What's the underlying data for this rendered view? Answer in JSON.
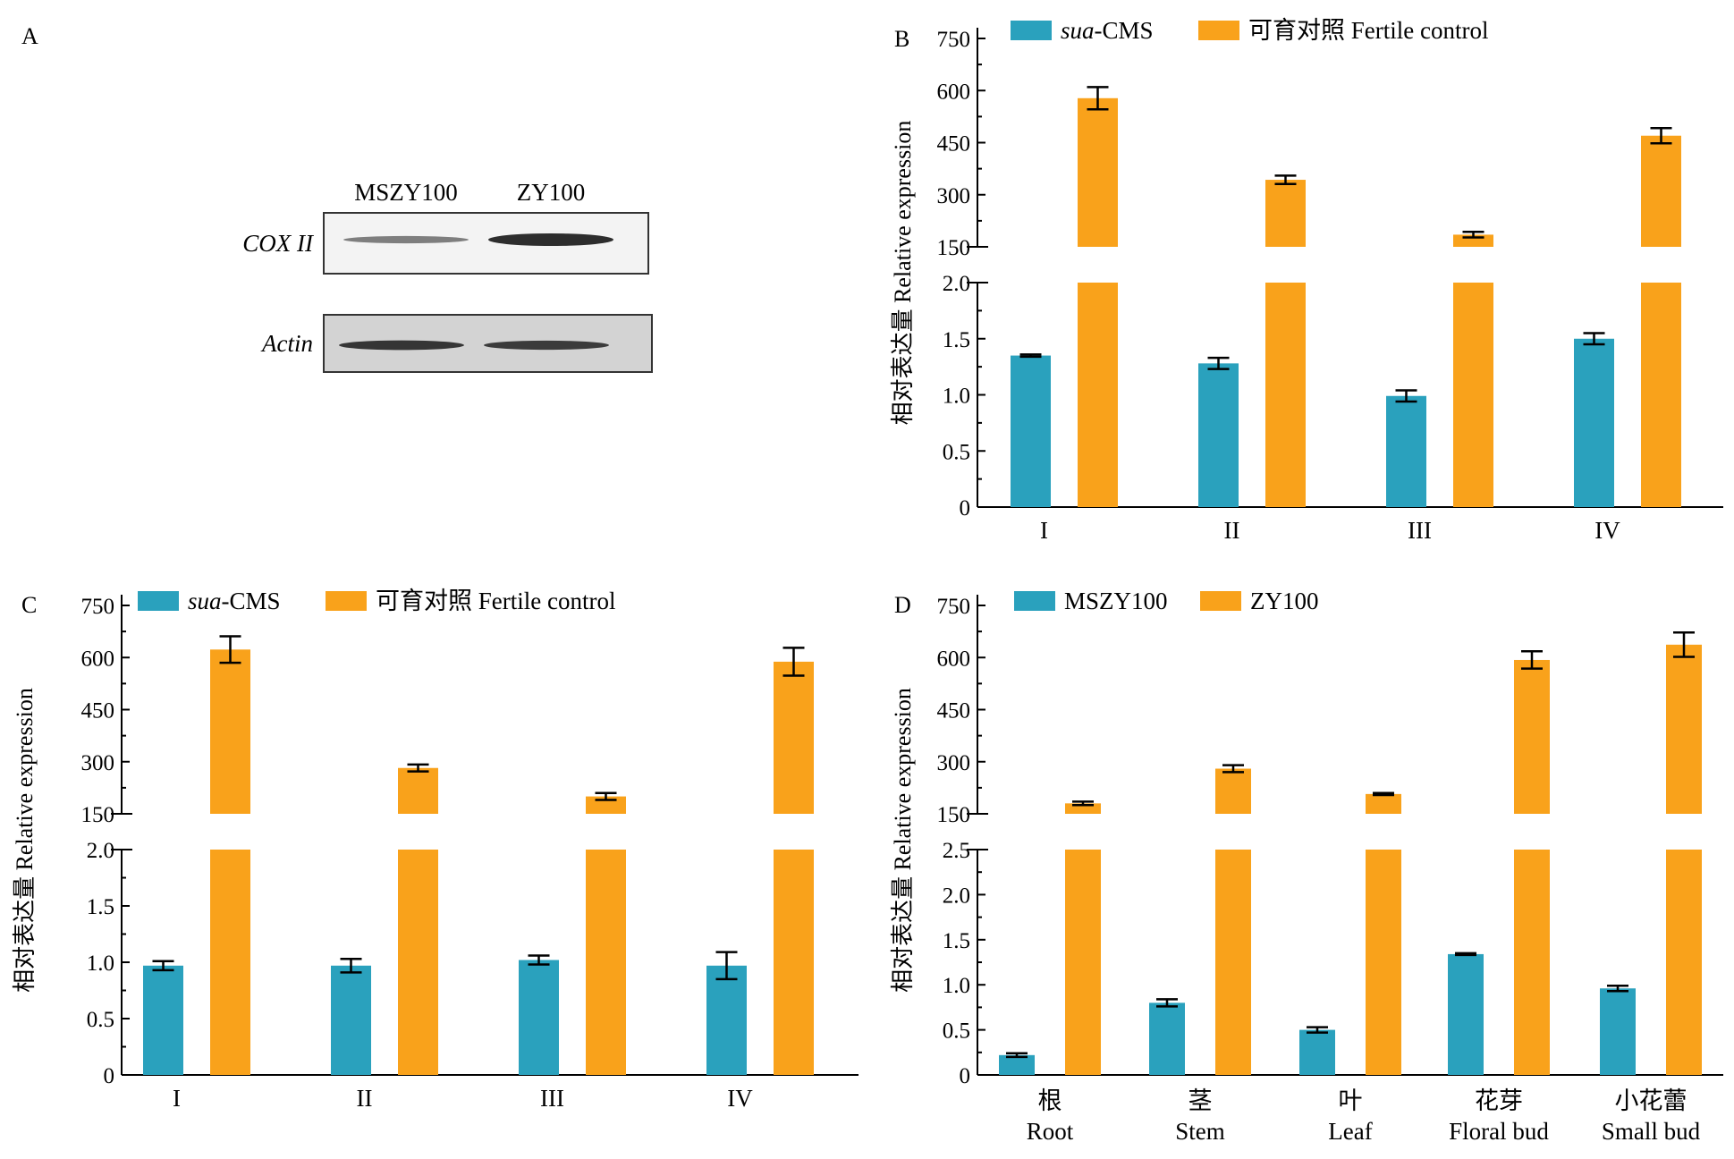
{
  "panels": {
    "A": {
      "letter": "A",
      "lanes": [
        "MSZY100",
        "ZY100"
      ],
      "blots": [
        {
          "label": "COX II",
          "band_intensity": [
            0.35,
            1.0
          ]
        },
        {
          "label": "Actin",
          "band_intensity": [
            0.9,
            0.85
          ]
        }
      ]
    }
  },
  "colors": {
    "series1": "#2aa1bd",
    "series2": "#f9a21b",
    "axis": "#000000",
    "blot_bg": "#d3d3d3",
    "band": "#222222"
  },
  "chart_data": [
    {
      "panel": "B",
      "type": "bar",
      "broken_y_axis": true,
      "categories": [
        "I",
        "II",
        "III",
        "IV"
      ],
      "ylabel": "相对表达量 Relative expression",
      "legend": [
        {
          "italic": "sua",
          "rest": "-CMS"
        },
        {
          "italic": "",
          "rest": "可育对照 Fertile control"
        }
      ],
      "lower_axis": {
        "range": [
          0,
          2.0
        ],
        "ticks": [
          "0",
          "0.5",
          "1.0",
          "1.5",
          "2.0"
        ]
      },
      "upper_axis": {
        "range": [
          150,
          750
        ],
        "ticks": [
          "150",
          "300",
          "450",
          "600",
          "750"
        ]
      },
      "series": [
        {
          "name": "sua-CMS",
          "values": [
            1.35,
            1.28,
            0.99,
            1.5
          ],
          "errors": [
            0.01,
            0.05,
            0.05,
            0.05
          ]
        },
        {
          "name": "可育对照 Fertile control",
          "values": [
            578,
            343,
            185,
            470
          ],
          "errors": [
            32,
            12,
            8,
            22
          ]
        }
      ]
    },
    {
      "panel": "C",
      "type": "bar",
      "broken_y_axis": true,
      "categories": [
        "I",
        "II",
        "III",
        "IV"
      ],
      "ylabel": "相对表达量 Relative expression",
      "legend": [
        {
          "italic": "sua",
          "rest": "-CMS"
        },
        {
          "italic": "",
          "rest": "可育对照 Fertile control"
        }
      ],
      "lower_axis": {
        "range": [
          0,
          2.0
        ],
        "ticks": [
          "0",
          "0.5",
          "1.0",
          "1.5",
          "2.0"
        ]
      },
      "upper_axis": {
        "range": [
          150,
          750
        ],
        "ticks": [
          "150",
          "300",
          "450",
          "600",
          "750"
        ]
      },
      "series": [
        {
          "name": "sua-CMS",
          "values": [
            0.97,
            0.97,
            1.02,
            0.97
          ],
          "errors": [
            0.04,
            0.06,
            0.04,
            0.12
          ]
        },
        {
          "name": "可育对照 Fertile control",
          "values": [
            623,
            282,
            200,
            588
          ],
          "errors": [
            38,
            10,
            10,
            40
          ]
        }
      ]
    },
    {
      "panel": "D",
      "type": "bar",
      "broken_y_axis": true,
      "categories": [
        {
          "cn": "根",
          "en": "Root"
        },
        {
          "cn": "茎",
          "en": "Stem"
        },
        {
          "cn": "叶",
          "en": "Leaf"
        },
        {
          "cn": "花芽",
          "en": "Floral bud"
        },
        {
          "cn": "小花蕾",
          "en": "Small bud"
        }
      ],
      "ylabel": "相对表达量 Relative expression",
      "legend": [
        {
          "italic": "",
          "rest": "MSZY100"
        },
        {
          "italic": "",
          "rest": "ZY100"
        }
      ],
      "lower_axis": {
        "range": [
          0,
          2.5
        ],
        "ticks": [
          "0",
          "0.5",
          "1.0",
          "1.5",
          "2.0",
          "2.5"
        ]
      },
      "upper_axis": {
        "range": [
          150,
          750
        ],
        "ticks": [
          "150",
          "300",
          "450",
          "600",
          "750"
        ]
      },
      "series": [
        {
          "name": "MSZY100",
          "values": [
            0.22,
            0.8,
            0.5,
            1.34,
            0.96
          ],
          "errors": [
            0.02,
            0.04,
            0.03,
            0.01,
            0.03
          ]
        },
        {
          "name": "ZY100",
          "values": [
            180,
            280,
            207,
            593,
            637
          ],
          "errors": [
            5,
            10,
            3,
            25,
            35
          ]
        }
      ]
    }
  ]
}
